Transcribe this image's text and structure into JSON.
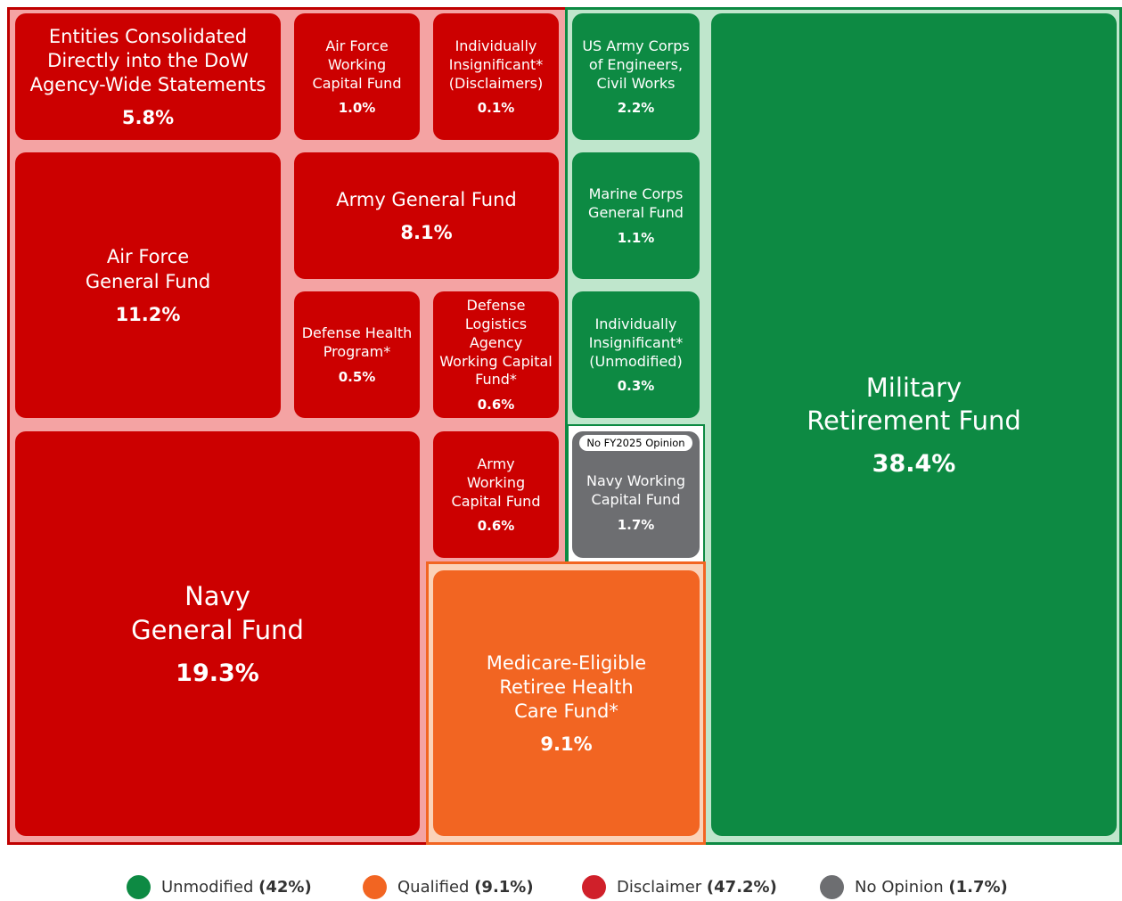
{
  "boxes": [
    {
      "name": "Entities Consolidated\nDirectly into the DoW\nAgency-Wide Statements",
      "value": "5.8%"
    },
    {
      "name": "Air Force\nWorking\nCapital Fund",
      "value": "1.0%"
    },
    {
      "name": "Individually\nInsignificant*\n(Disclaimers)",
      "value": "0.1%"
    },
    {
      "name": "Air Force\nGeneral Fund",
      "value": "11.2%"
    },
    {
      "name": "Army General Fund",
      "value": "8.1%"
    },
    {
      "name": "Defense Health\nProgram*",
      "value": "0.5%"
    },
    {
      "name": "Defense\nLogistics Agency\nWorking Capital\nFund*",
      "value": "0.6%"
    },
    {
      "name": "Navy\nGeneral Fund",
      "value": "19.3%"
    },
    {
      "name": "Army\nWorking\nCapital Fund",
      "value": "0.6%"
    },
    {
      "name": "US Army Corps\nof Engineers,\nCivil Works",
      "value": "2.2%"
    },
    {
      "name": "Marine Corps\nGeneral Fund",
      "value": "1.1%"
    },
    {
      "name": "Individually\nInsignificant*\n(Unmodified)",
      "value": "0.3%"
    },
    {
      "name": "Navy Working\nCapital Fund",
      "value": "1.7%",
      "badge": "No FY2025 Opinion"
    },
    {
      "name": "Medicare-Eligible\nRetiree Health\nCare Fund*",
      "value": "9.1%"
    },
    {
      "name": "Military\nRetirement Fund",
      "value": "38.4%"
    }
  ],
  "legend": [
    {
      "label": "Unmodified",
      "value": "(42%)",
      "color": "#0d8a43"
    },
    {
      "label": "Qualified",
      "value": "(9.1%)",
      "color": "#f26522"
    },
    {
      "label": "Disclaimer",
      "value": "(47.2%)",
      "color": "#d0202a"
    },
    {
      "label": "No Opinion",
      "value": "(1.7%)",
      "color": "#6d6e71"
    }
  ]
}
